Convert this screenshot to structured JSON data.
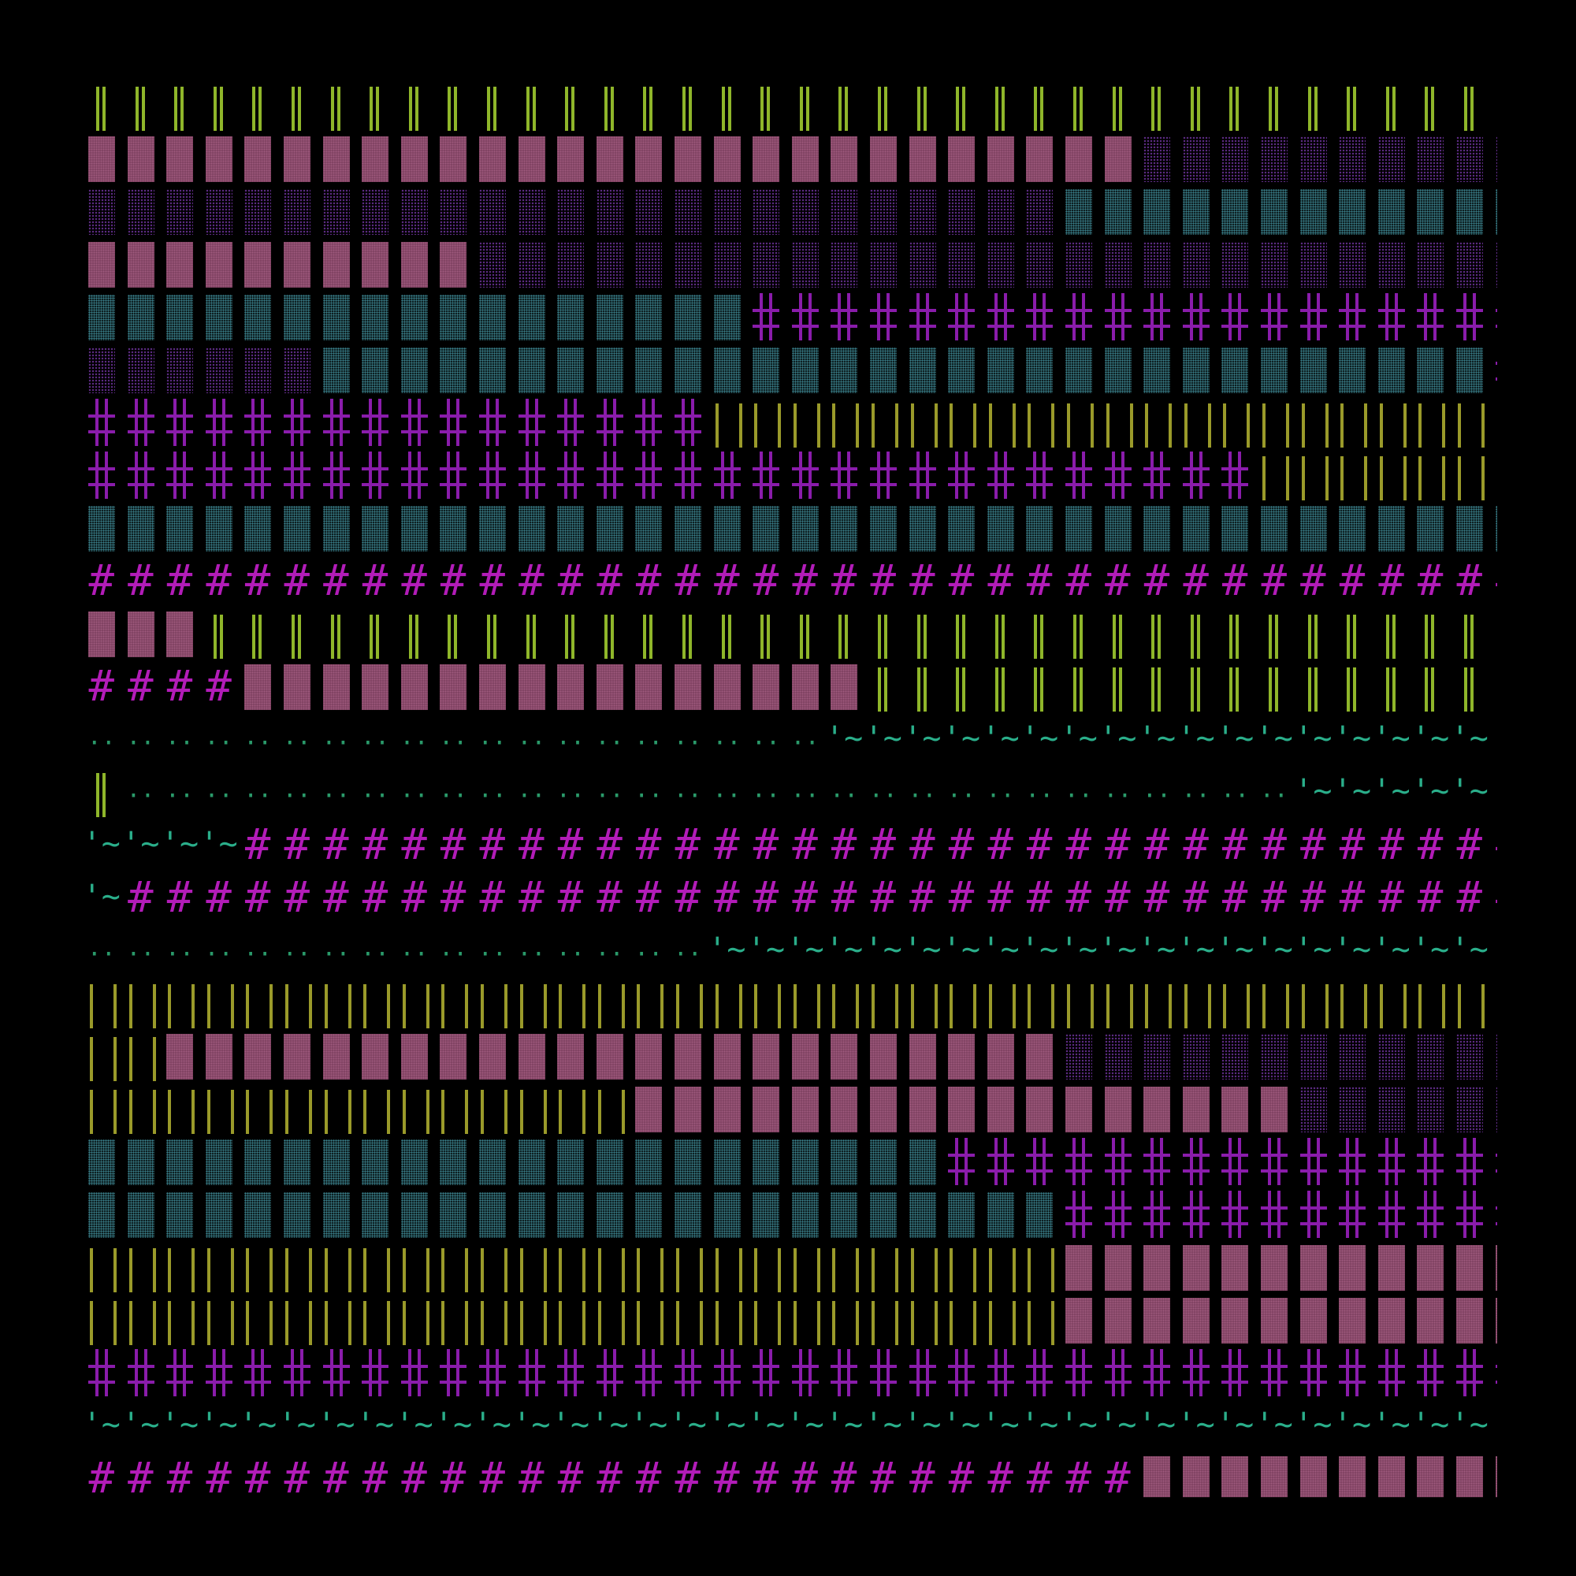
{
  "colors": {
    "background": "#000000",
    "lime": "#8fb62a",
    "olive": "#9a9a2a",
    "rose_block": "#7a3f5e",
    "purple_dots": "#5a2a80",
    "teal_dots": "#3a7f8a",
    "violet_cross": "#8a1cab",
    "magenta_hash": "#b21cb8",
    "teal_text": "#2aae8a"
  },
  "glyphs": {
    "hash": "#",
    "tilde": "'~",
    "dots": "··"
  },
  "rows": [
    {
      "segments": [
        [
          "dbar",
          36
        ]
      ]
    },
    {
      "segments": [
        [
          "block",
          27
        ],
        [
          "dotsP",
          10
        ]
      ]
    },
    {
      "segments": [
        [
          "dotsP",
          25
        ],
        [
          "dotsT",
          12
        ]
      ]
    },
    {
      "segments": [
        [
          "block",
          10
        ],
        [
          "dotsP",
          27
        ]
      ]
    },
    {
      "segments": [
        [
          "dotsT",
          17
        ],
        [
          "cross",
          20
        ]
      ]
    },
    {
      "segments": [
        [
          "dotsP",
          6
        ],
        [
          "dotsT",
          30
        ],
        [
          "cross",
          1
        ]
      ]
    },
    {
      "segments": [
        [
          "cross",
          16
        ],
        [
          "sbar",
          21
        ]
      ]
    },
    {
      "segments": [
        [
          "cross",
          30
        ],
        [
          "sbar",
          7
        ]
      ]
    },
    {
      "segments": [
        [
          "dotsT",
          37
        ]
      ]
    },
    {
      "segments": [
        [
          "hash",
          37
        ]
      ]
    },
    {
      "segments": [
        [
          "block",
          3
        ],
        [
          "dbar",
          34
        ]
      ]
    },
    {
      "segments": [
        [
          "hash",
          4
        ],
        [
          "block",
          16
        ],
        [
          "dbar",
          17
        ]
      ]
    },
    {
      "segments": [
        [
          "dd",
          19
        ],
        [
          "tilde",
          18
        ]
      ]
    },
    {
      "segments": [
        [
          "dbar",
          1
        ],
        [
          "dd",
          30
        ],
        [
          "tilde",
          6
        ]
      ]
    },
    {
      "segments": [
        [
          "tilde",
          4
        ],
        [
          "hash",
          33
        ]
      ]
    },
    {
      "segments": [
        [
          "tilde",
          1
        ],
        [
          "hash",
          36
        ]
      ]
    },
    {
      "segments": [
        [
          "dd",
          16
        ],
        [
          "tilde",
          21
        ]
      ]
    },
    {
      "segments": [
        [
          "sbar",
          37
        ]
      ]
    },
    {
      "segments": [
        [
          "sbar",
          2
        ],
        [
          "block",
          23
        ],
        [
          "dotsP",
          12
        ]
      ]
    },
    {
      "segments": [
        [
          "sbar",
          14
        ],
        [
          "block",
          17
        ],
        [
          "dotsP",
          6
        ]
      ]
    },
    {
      "segments": [
        [
          "dotsT",
          22
        ],
        [
          "cross",
          15
        ]
      ]
    },
    {
      "segments": [
        [
          "dotsT",
          25
        ],
        [
          "cross",
          12
        ]
      ]
    },
    {
      "segments": [
        [
          "sbar",
          25
        ],
        [
          "block",
          12
        ]
      ]
    },
    {
      "segments": [
        [
          "sbar",
          25
        ],
        [
          "block",
          12
        ]
      ]
    },
    {
      "segments": [
        [
          "cross",
          37
        ]
      ]
    },
    {
      "segments": [
        [
          "tilde",
          37
        ]
      ]
    },
    {
      "segments": [
        [
          "hash",
          27
        ],
        [
          "block",
          10
        ]
      ]
    }
  ]
}
